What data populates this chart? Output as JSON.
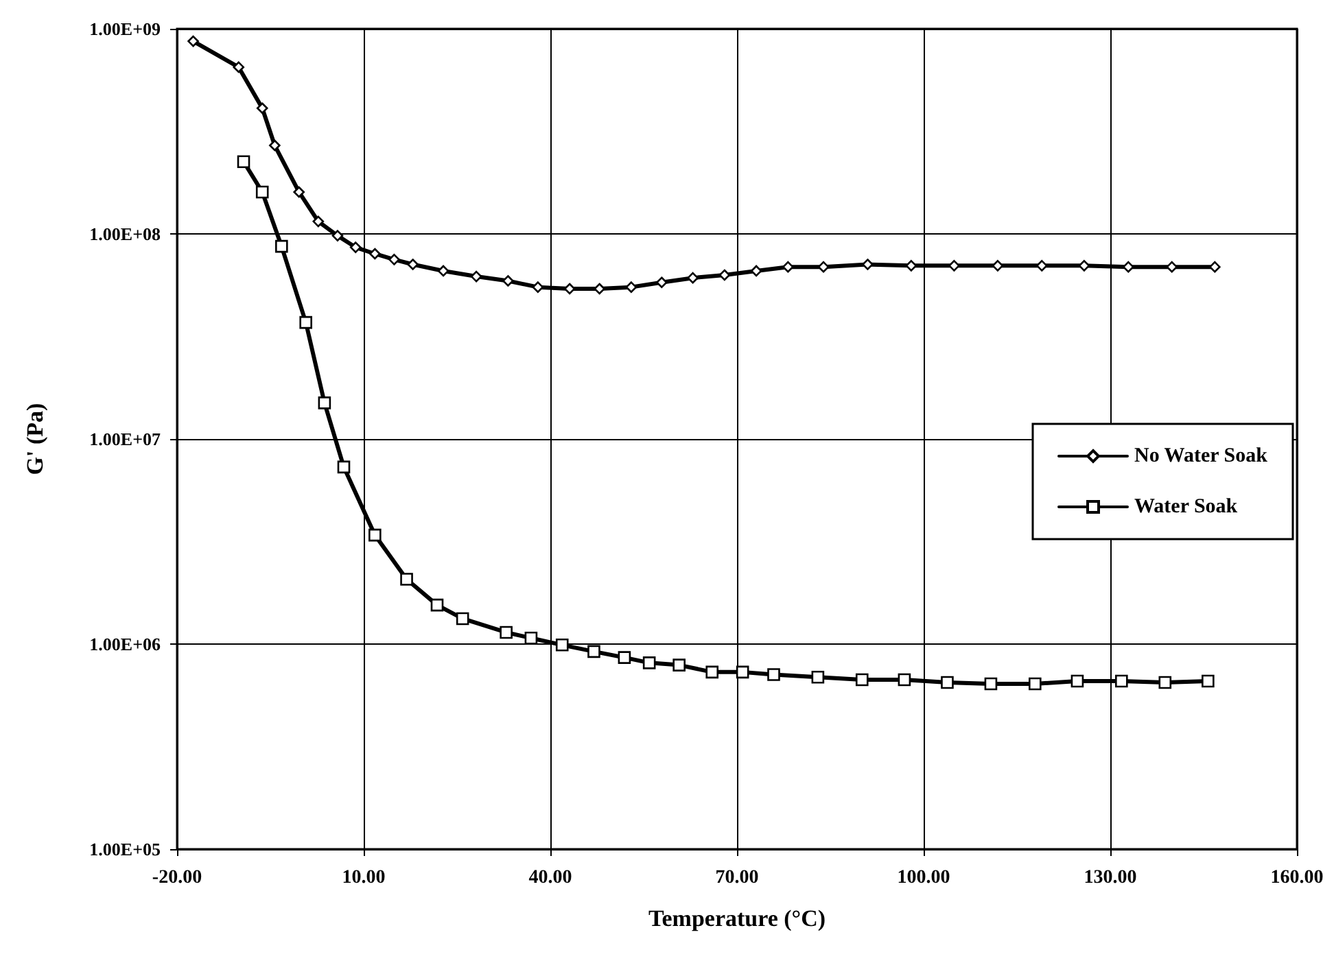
{
  "chart_data": {
    "type": "line",
    "xlabel": "Temperature (°C)",
    "ylabel": "G' (Pa)",
    "log": "y",
    "grid": true,
    "legend": "right",
    "line_style": "solid",
    "xlim": [
      -20,
      160
    ],
    "xticks": [
      {
        "value": -20,
        "label": "-20.00"
      },
      {
        "value": 10,
        "label": "10.00"
      },
      {
        "value": 40,
        "label": "40.00"
      },
      {
        "value": 70,
        "label": "70.00"
      },
      {
        "value": 100,
        "label": "100.00"
      },
      {
        "value": 130,
        "label": "130.00"
      },
      {
        "value": 160,
        "label": "160.00"
      }
    ],
    "ylim": [
      100000,
      1000000000
    ],
    "yticks": [
      {
        "value": 100000,
        "label": "1.00E+05"
      },
      {
        "value": 1000000,
        "label": "1.00E+06"
      },
      {
        "value": 10000000,
        "label": "1.00E+07"
      },
      {
        "value": 100000000,
        "label": "1.00E+08"
      },
      {
        "value": 1000000000,
        "label": "1.00E+09"
      }
    ],
    "series": [
      {
        "name": "No Water Soak",
        "color": "#000000",
        "marker": "diamond",
        "x": [
          -17.4,
          -10.1,
          -6.3,
          -4.3,
          -0.4,
          2.7,
          5.8,
          8.7,
          11.8,
          14.9,
          17.9,
          22.8,
          28.1,
          33.2,
          38.0,
          43.1,
          47.9,
          53.0,
          57.9,
          62.9,
          68.0,
          73.1,
          78.2,
          83.9,
          91.0,
          98.0,
          104.9,
          111.9,
          119.0,
          125.8,
          132.9,
          139.9,
          146.8
        ],
        "values": [
          870000000,
          650000000,
          410000000,
          270000000,
          160000000,
          115000000,
          98000000,
          86000000,
          80000000,
          75000000,
          71000000,
          66000000,
          62000000,
          59000000,
          55000000,
          54000000,
          54000000,
          55000000,
          58000000,
          61000000,
          63000000,
          66000000,
          69000000,
          69000000,
          71000000,
          70000000,
          70000000,
          70000000,
          70000000,
          70000000,
          69000000,
          69000000,
          69000000
        ]
      },
      {
        "name": "Water Soak",
        "color": "#000000",
        "marker": "square",
        "x": [
          -9.3,
          -6.3,
          -3.2,
          0.7,
          3.7,
          6.8,
          11.8,
          16.9,
          21.8,
          25.9,
          32.9,
          36.9,
          41.9,
          47.0,
          51.9,
          55.9,
          60.7,
          66.0,
          70.9,
          75.9,
          83.0,
          90.1,
          96.9,
          103.8,
          110.8,
          117.9,
          124.7,
          131.8,
          138.8,
          145.7
        ],
        "values": [
          225000000,
          160000000,
          87000000,
          37000000,
          15000000,
          7300000,
          3400000,
          2070000,
          1550000,
          1330000,
          1140000,
          1070000,
          990000,
          920000,
          860000,
          810000,
          790000,
          730000,
          730000,
          710000,
          690000,
          670000,
          670000,
          650000,
          640000,
          640000,
          660000,
          660000,
          650000,
          660000
        ]
      }
    ]
  }
}
